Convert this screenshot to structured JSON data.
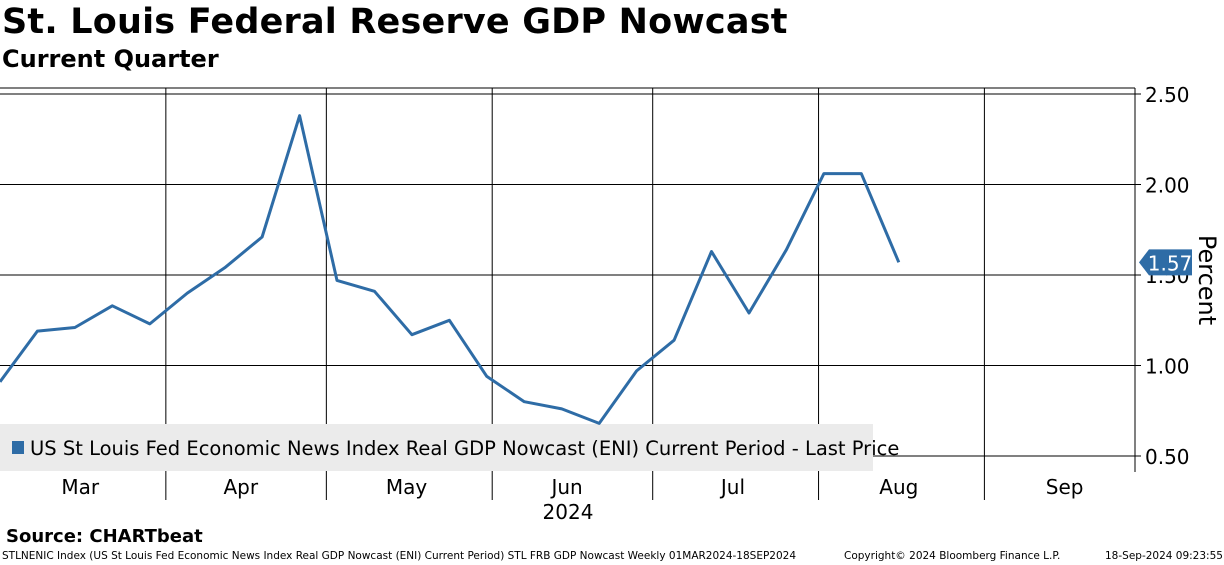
{
  "header": {
    "title": "St. Louis Federal Reserve GDP Nowcast",
    "subtitle": "Current Quarter"
  },
  "footer": {
    "source": "Source: CHARTbeat",
    "ticker_line": "STLNENIC Index (US St Louis Fed Economic News Index Real GDP Nowcast (ENI) Current Period) STL FRB GDP Nowcast  Weekly 01MAR2024-18SEP2024",
    "copyright": "Copyright© 2024 Bloomberg Finance L.P.",
    "timestamp": "18-Sep-2024 09:23:55"
  },
  "colors": {
    "series": "#2E6CA6",
    "grid": "#000000",
    "legend_bg": "#ebebeb",
    "label_text": "#ffffff"
  },
  "chart_data": {
    "type": "line",
    "title": "St. Louis Federal Reserve GDP Nowcast",
    "subtitle": "Current Quarter",
    "xlabel": "2024",
    "ylabel": "Percent",
    "ylim": [
      0.5,
      2.5
    ],
    "yticks": [
      0.5,
      1.0,
      1.5,
      2.0,
      2.5
    ],
    "ytick_labels": [
      "0.50",
      "1.00",
      "1.50",
      "2.00",
      "2.50"
    ],
    "x_axis": {
      "start": "2024-03-01",
      "end": "2024-09-18",
      "year_label": "2024"
    },
    "month_labels": [
      {
        "label": "Mar",
        "date": "2024-03-16"
      },
      {
        "label": "Apr",
        "date": "2024-04-15"
      },
      {
        "label": "May",
        "date": "2024-05-16"
      },
      {
        "label": "Jun",
        "date": "2024-06-15"
      },
      {
        "label": "Jul",
        "date": "2024-07-16"
      },
      {
        "label": "Aug",
        "date": "2024-08-16"
      },
      {
        "label": "Sep",
        "date": "2024-09-16"
      }
    ],
    "gridline_dates": [
      "2024-04-01",
      "2024-05-01",
      "2024-06-01",
      "2024-07-01",
      "2024-08-01",
      "2024-09-01"
    ],
    "grid": true,
    "legend": {
      "label": "US St Louis Fed Economic News Index Real GDP Nowcast (ENI) Current Period - Last Price",
      "position": "bottom-left"
    },
    "last_value_label": "1.57",
    "series": [
      {
        "name": "US St Louis Fed Economic News Index Real GDP Nowcast (ENI) Current Period - Last Price",
        "x": [
          "2024-03-01",
          "2024-03-08",
          "2024-03-15",
          "2024-03-22",
          "2024-03-29",
          "2024-04-05",
          "2024-04-12",
          "2024-04-19",
          "2024-04-26",
          "2024-05-03",
          "2024-05-10",
          "2024-05-17",
          "2024-05-24",
          "2024-05-31",
          "2024-06-07",
          "2024-06-14",
          "2024-06-21",
          "2024-06-28",
          "2024-07-05",
          "2024-07-12",
          "2024-07-19",
          "2024-07-26",
          "2024-08-02",
          "2024-08-09",
          "2024-08-16",
          "2024-08-23",
          "2024-08-30",
          "2024-09-06",
          "2024-09-13",
          "2024-09-18"
        ],
        "values": [
          0.91,
          1.19,
          1.21,
          1.33,
          1.23,
          1.4,
          1.54,
          1.71,
          2.38,
          1.47,
          1.41,
          1.17,
          1.25,
          0.94,
          0.8,
          0.76,
          0.68,
          0.97,
          1.14,
          1.63,
          1.29,
          1.64,
          2.06,
          2.06,
          1.57,
          null,
          null,
          null,
          null,
          null
        ]
      }
    ]
  }
}
